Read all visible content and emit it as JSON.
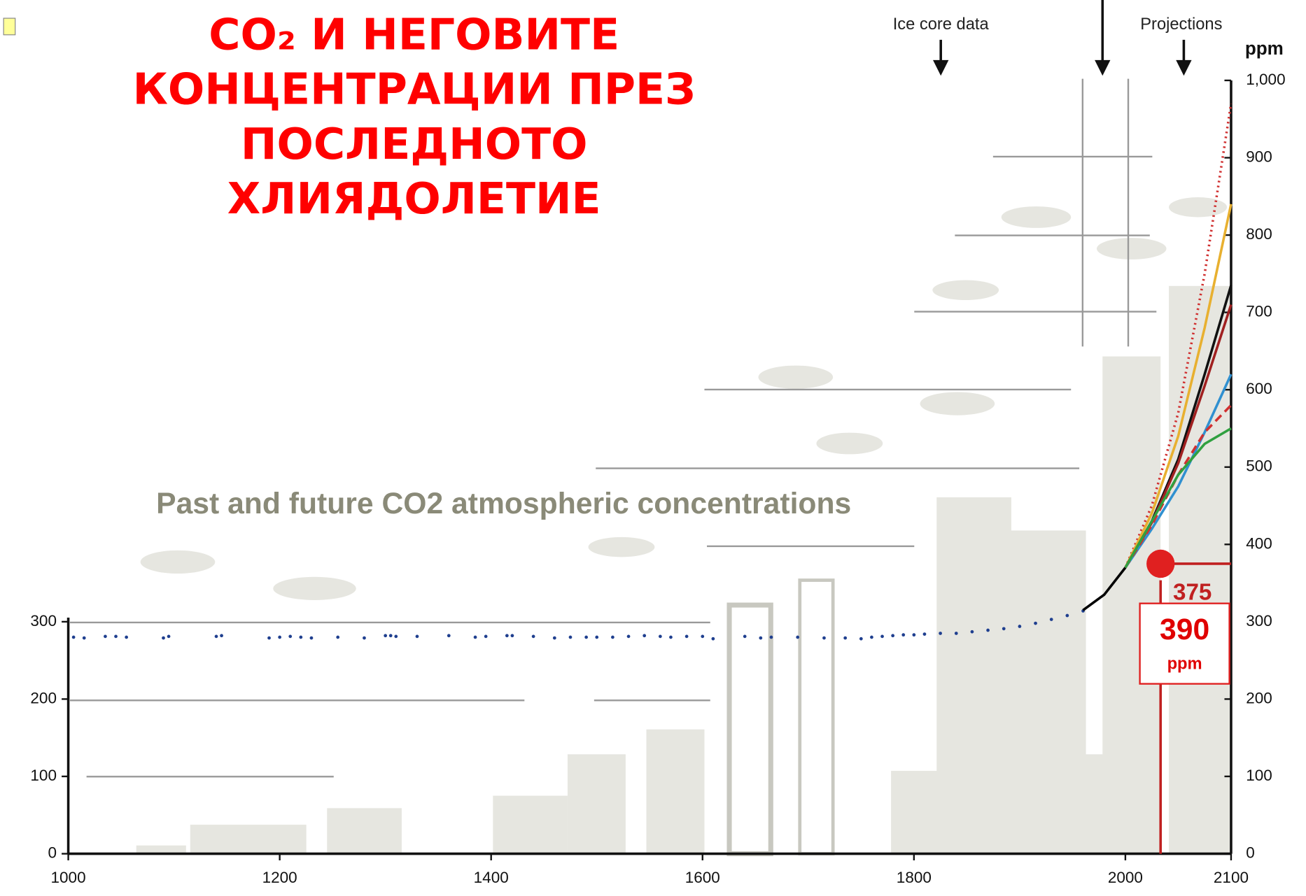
{
  "chart_data": {
    "type": "line",
    "title": [
      "CO₂ И НЕГОВИТЕ",
      "КОНЦЕНТРАЦИИ ПРЕЗ",
      "ПОСЛЕДНОТО",
      "ХЛИЯДОЛЕТИЕ"
    ],
    "subtitle": "Past and future CO2 atmospheric concentrations",
    "y_label": "ppm",
    "annotations": [
      "Ice core data",
      "Projections"
    ],
    "xlim": [
      1000,
      2100
    ],
    "xticks": [
      1000,
      1200,
      1400,
      1600,
      1800,
      2000,
      2100
    ],
    "ylim": [
      0,
      1000
    ],
    "yticks": [
      0,
      100,
      200,
      300,
      400,
      500,
      600,
      700,
      800,
      900,
      {
        "value": 1000,
        "label": "1,000"
      }
    ],
    "left_yticks": [
      0,
      100,
      200,
      300
    ],
    "marker": {
      "value": 375,
      "label": "375"
    },
    "callout": {
      "value": 390,
      "unit": "ppm"
    },
    "series": [
      {
        "style": "dots",
        "color": "#1f3f8f",
        "x": [
          1005,
          1015,
          1035,
          1045,
          1055,
          1090,
          1095,
          1140,
          1145,
          1190,
          1200,
          1210,
          1220,
          1230,
          1255,
          1280,
          1300,
          1305,
          1310,
          1330,
          1360,
          1385,
          1395,
          1415,
          1420,
          1440,
          1460,
          1475,
          1490,
          1500,
          1515,
          1530,
          1545,
          1560,
          1570,
          1585,
          1600,
          1610,
          1640,
          1655,
          1665,
          1690,
          1715,
          1735,
          1750,
          1760,
          1770,
          1780,
          1790,
          1800,
          1810,
          1825,
          1840,
          1855,
          1870,
          1885,
          1900,
          1915,
          1930,
          1945,
          1960
        ],
        "values": [
          280,
          279,
          281,
          281,
          280,
          279,
          281,
          281,
          282,
          279,
          280,
          281,
          280,
          279,
          280,
          279,
          282,
          282,
          281,
          281,
          282,
          280,
          281,
          282,
          282,
          281,
          279,
          280,
          280,
          280,
          280,
          281,
          282,
          281,
          280,
          281,
          281,
          278,
          281,
          279,
          280,
          280,
          279,
          279,
          278,
          280,
          281,
          282,
          283,
          283,
          284,
          285,
          285,
          287,
          289,
          291,
          294,
          298,
          303,
          308,
          314
        ]
      },
      {
        "style": "solid",
        "color": "#000000",
        "x": [
          1960,
          1980,
          2000
        ],
        "values": [
          315,
          335,
          370
        ]
      },
      {
        "style": "dotted",
        "color": "#d03030",
        "x": [
          2000,
          2025,
          2050,
          2075,
          2100
        ],
        "values": [
          370,
          450,
          570,
          750,
          970
        ]
      },
      {
        "style": "solid",
        "color": "#e8b030",
        "x": [
          2000,
          2025,
          2050,
          2075,
          2100
        ],
        "values": [
          370,
          440,
          540,
          680,
          840
        ]
      },
      {
        "style": "solid",
        "color": "#111111",
        "x": [
          2000,
          2025,
          2050,
          2075,
          2100
        ],
        "values": [
          370,
          430,
          510,
          620,
          735
        ]
      },
      {
        "style": "solid",
        "color": "#a02020",
        "x": [
          2000,
          2025,
          2050,
          2075,
          2100
        ],
        "values": [
          370,
          428,
          505,
          605,
          710
        ]
      },
      {
        "style": "solid",
        "color": "#3090d0",
        "x": [
          2000,
          2025,
          2050,
          2075,
          2100
        ],
        "values": [
          370,
          420,
          475,
          545,
          620
        ]
      },
      {
        "style": "dashed",
        "color": "#d03030",
        "x": [
          2000,
          2025,
          2050,
          2075,
          2100
        ],
        "values": [
          370,
          425,
          490,
          545,
          580
        ]
      },
      {
        "style": "solid",
        "color": "#30a040",
        "x": [
          2000,
          2025,
          2050,
          2075,
          2100
        ],
        "values": [
          370,
          430,
          490,
          530,
          550
        ]
      }
    ]
  }
}
